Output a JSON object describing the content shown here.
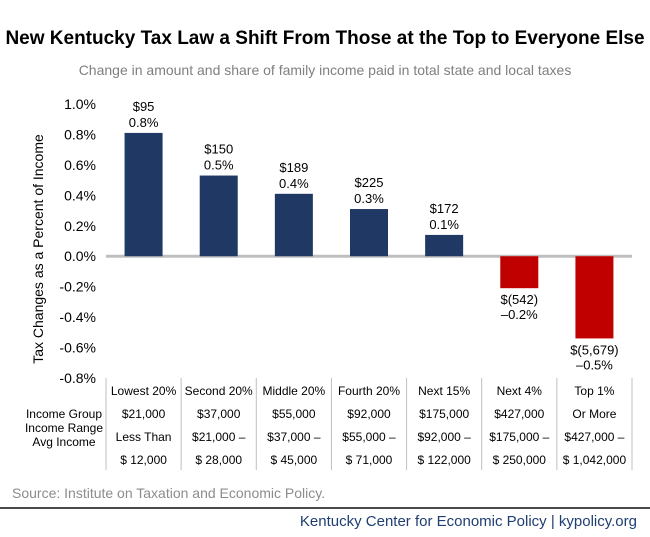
{
  "title": "New Kentucky Tax Law a Shift From Those at the Top to Everyone Else",
  "subtitle": "Change in amount and share of family income paid in total state and local taxes",
  "source": "Source: Institute on Taxation and Economic Policy.",
  "footer": "Kentucky Center for Economic Policy | kypolicy.org",
  "colors": {
    "positive": "#1f3864",
    "negative": "#c00000",
    "zero_line": "#bfbfbf"
  },
  "row_labels": [
    "Income Group",
    "Income Range",
    "Avg Income"
  ],
  "chart_data": {
    "type": "bar",
    "title": "New Kentucky Tax Law a Shift From Those at the Top to Everyone Else",
    "subtitle": "Change in amount and share of family income paid in total state and local taxes",
    "ylabel": "Tax Changes as a Percent of Income",
    "xlabel": "",
    "ylim": [
      -0.8,
      1.0
    ],
    "yticks": [
      "1.0%",
      "0.8%",
      "0.6%",
      "0.4%",
      "0.2%",
      "0.0%",
      "-0.2%",
      "-0.4%",
      "-0.6%",
      "-0.8%"
    ],
    "ytick_values": [
      1.0,
      0.8,
      0.6,
      0.4,
      0.2,
      0.0,
      -0.2,
      -0.4,
      -0.6,
      -0.8
    ],
    "grid": false,
    "categories": [
      "Lowest 20%",
      "Second 20%",
      "Middle 20%",
      "Fourth 20%",
      "Next 15%",
      "Next 4%",
      "Top 1%"
    ],
    "values": [
      0.81,
      0.53,
      0.41,
      0.31,
      0.14,
      -0.21,
      -0.54
    ],
    "dollar_labels": [
      "$95",
      "$150",
      "$189",
      "$225",
      "$172",
      "$(542)",
      "$(5,679)"
    ],
    "pct_labels": [
      "0.8%",
      "0.5%",
      "0.4%",
      "0.3%",
      "0.1%",
      "–0.2%",
      "–0.5%"
    ],
    "income_range_top": [
      "$21,000",
      "$37,000",
      "$55,000",
      "$92,000",
      "$175,000",
      "$427,000",
      "Or More"
    ],
    "income_range_bottom": [
      "Less Than",
      "$21,000 –",
      "$37,000 –",
      "$55,000 –",
      "$92,000 –",
      "$175,000 –",
      "$427,000 –"
    ],
    "avg_income": [
      "$ 12,000",
      "$ 28,000",
      "$ 45,000",
      "$ 71,000",
      "$ 122,000",
      "$ 250,000",
      "$ 1,042,000"
    ]
  }
}
